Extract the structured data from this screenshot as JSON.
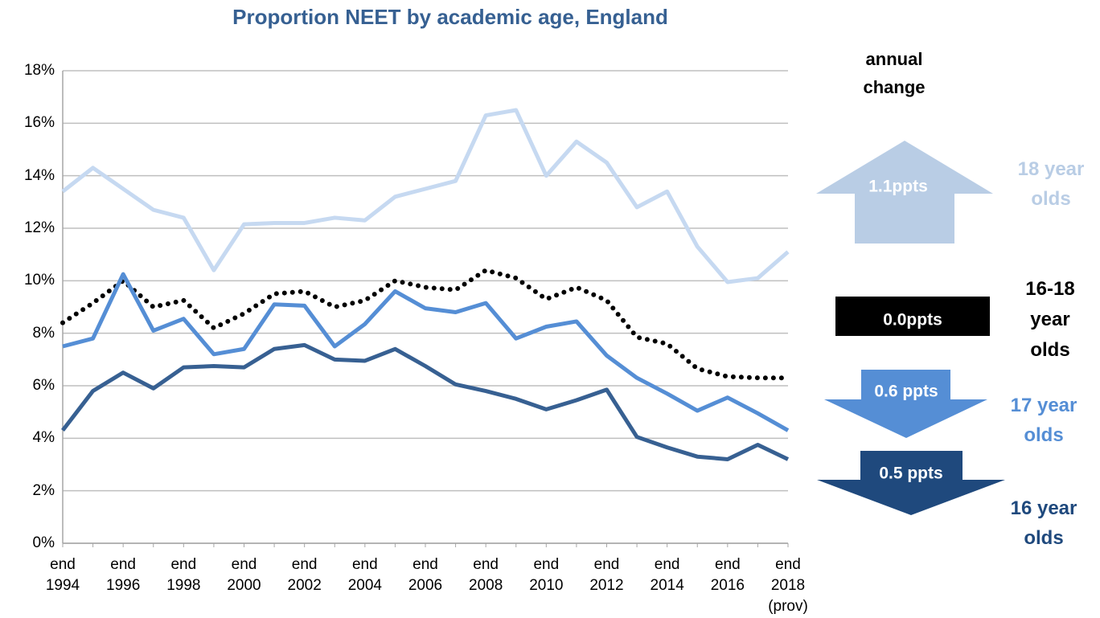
{
  "chart_data": {
    "type": "line",
    "title": "Proportion NEET by academic age, England",
    "annotation_title": "annual change",
    "categories": [
      "end 1994",
      null,
      "end 1996",
      null,
      "end 1998",
      null,
      "end 2000",
      null,
      "end 2002",
      null,
      "end 2004",
      null,
      "end 2006",
      null,
      "end 2008",
      null,
      "end 2010",
      null,
      "end 2012",
      null,
      "end 2014",
      null,
      "end 2016",
      null,
      "end 2018 (prov)"
    ],
    "ylim": [
      0,
      18
    ],
    "yticks": [
      {
        "value": 0,
        "label": "0%"
      },
      {
        "value": 2,
        "label": "2%"
      },
      {
        "value": 4,
        "label": "4%"
      },
      {
        "value": 6,
        "label": "6%"
      },
      {
        "value": 8,
        "label": "8%"
      },
      {
        "value": 10,
        "label": "10%"
      },
      {
        "value": 12,
        "label": "12%"
      },
      {
        "value": 14,
        "label": "14%"
      },
      {
        "value": 16,
        "label": "16%"
      },
      {
        "value": 18,
        "label": "18%"
      }
    ],
    "grid": true,
    "series": [
      {
        "name": "18 year olds",
        "color": "#c6d9f1",
        "annual_change": "1.1ppts",
        "dashed": false,
        "values": [
          13.4,
          14.3,
          13.5,
          12.7,
          12.4,
          10.4,
          12.15,
          12.2,
          12.2,
          12.4,
          12.3,
          13.2,
          13.5,
          13.8,
          16.3,
          16.5,
          14.0,
          15.3,
          14.5,
          12.8,
          13.4,
          11.3,
          9.95,
          10.1,
          11.1
        ]
      },
      {
        "name": "16-18 year olds",
        "color": "#000000",
        "annual_change": "0.0ppts",
        "dashed": true,
        "values": [
          8.4,
          9.15,
          10.0,
          9.0,
          9.25,
          8.2,
          8.75,
          9.5,
          9.6,
          9.0,
          9.25,
          10.0,
          9.75,
          9.65,
          10.4,
          10.1,
          9.3,
          9.75,
          9.25,
          7.85,
          7.6,
          6.65,
          6.35,
          6.3,
          6.3
        ]
      },
      {
        "name": "17 year olds",
        "color": "#558ed5",
        "annual_change": "0.6 ppts",
        "dashed": false,
        "values": [
          7.5,
          7.8,
          10.25,
          8.1,
          8.55,
          7.2,
          7.4,
          9.1,
          9.05,
          7.5,
          8.35,
          9.6,
          8.95,
          8.8,
          9.15,
          7.8,
          8.25,
          8.45,
          7.15,
          6.3,
          5.7,
          5.05,
          5.55,
          4.95,
          4.3
        ]
      },
      {
        "name": "16 year olds",
        "color": "#376092",
        "annual_change": "0.5 ppts",
        "dashed": false,
        "values": [
          4.3,
          5.8,
          6.5,
          5.9,
          6.7,
          6.75,
          6.7,
          7.4,
          7.55,
          7.0,
          6.95,
          7.4,
          6.75,
          6.05,
          5.8,
          5.5,
          5.1,
          5.45,
          5.85,
          4.05,
          3.65,
          3.3,
          3.2,
          3.75,
          3.2
        ]
      }
    ]
  }
}
